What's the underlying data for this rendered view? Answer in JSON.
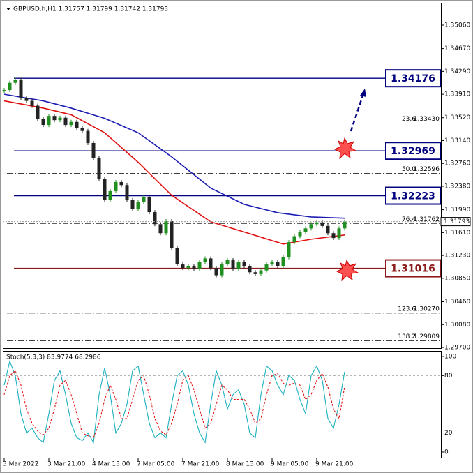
{
  "chart_data": [
    {
      "type": "candlestick",
      "title": "GBPUSD.h,H1  1.31757 1.31799 1.31742 1.31793",
      "values": [
        1.3398,
        1.341,
        1.3415,
        1.3385,
        1.338,
        1.3372,
        1.335,
        1.334,
        1.3355,
        1.3348,
        1.3352,
        1.334,
        1.3345,
        1.3335,
        1.333,
        1.331,
        1.3285,
        1.325,
        1.3215,
        1.323,
        1.3245,
        1.324,
        1.3215,
        1.32,
        1.3212,
        1.322,
        1.3195,
        1.3175,
        1.316,
        1.318,
        1.3135,
        1.3108,
        1.3102,
        1.3105,
        1.31,
        1.3112,
        1.3118,
        1.3102,
        1.309,
        1.3108,
        1.3115,
        1.31,
        1.3112,
        1.3105,
        1.3095,
        1.3092,
        1.3098,
        1.3108,
        1.3112,
        1.3105,
        1.312,
        1.3145,
        1.3155,
        1.3162,
        1.3168,
        1.3175,
        1.3178,
        1.3172,
        1.316,
        1.3152,
        1.3168,
        1.31793
      ],
      "up_color": "#1f8f1f",
      "down_color": "#222222",
      "ma_series": [
        {
          "color": "#1c1cb4",
          "x": [
            0,
            7,
            12,
            18,
            24,
            30,
            37,
            43,
            49,
            55,
            61
          ],
          "values": [
            1.3391,
            1.338,
            1.3368,
            1.3351,
            1.3327,
            1.3287,
            1.3235,
            1.3208,
            1.3194,
            1.3187,
            1.3185
          ]
        },
        {
          "color": "#e01010",
          "x": [
            0,
            7,
            12,
            18,
            24,
            30,
            37,
            43,
            50,
            55,
            61
          ],
          "values": [
            1.338,
            1.3368,
            1.3357,
            1.3327,
            1.3278,
            1.3223,
            1.3179,
            1.3162,
            1.3142,
            1.315,
            1.3157
          ]
        }
      ],
      "xticks": [
        {
          "value": 0,
          "label": "3 Mar 2022"
        },
        {
          "value": 8,
          "label": "3 Mar 21:00"
        },
        {
          "value": 16,
          "label": "4 Mar 13:00"
        },
        {
          "value": 24,
          "label": "7 Mar 05:00"
        },
        {
          "value": 32,
          "label": "7 Mar 21:00"
        },
        {
          "value": 40,
          "label": "8 Mar 13:00"
        },
        {
          "value": 48,
          "label": "9 Mar 05:00"
        },
        {
          "value": 56,
          "label": "9 Mar 21:00"
        }
      ],
      "ylim": [
        1.29677,
        1.35431
      ],
      "yticks": [
        {
          "value": 1.3506,
          "label": "1.35060"
        },
        {
          "value": 1.3467,
          "label": "1.34670"
        },
        {
          "value": 1.3429,
          "label": "1.34290"
        },
        {
          "value": 1.3391,
          "label": "1.33910"
        },
        {
          "value": 1.3352,
          "label": "1.33520"
        },
        {
          "value": 1.3314,
          "label": "1.33140"
        },
        {
          "value": 1.3276,
          "label": "1.32760"
        },
        {
          "value": 1.3238,
          "label": "1.32380"
        },
        {
          "value": 1.3199,
          "label": "1.31990"
        },
        {
          "value": 1.3161,
          "label": "1.31610"
        },
        {
          "value": 1.3123,
          "label": "1.31230"
        },
        {
          "value": 1.3085,
          "label": "1.30850"
        },
        {
          "value": 1.3046,
          "label": "1.30460"
        },
        {
          "value": 1.3008,
          "label": "1.30080"
        },
        {
          "value": 1.297,
          "label": "1.29700"
        }
      ],
      "key_levels": {
        "values": [
          1.34176,
          1.32969,
          1.32223,
          1.31016
        ],
        "colors": [
          "#00007f",
          "#00007f",
          "#00007f",
          "#8b1a1a"
        ]
      },
      "fib": {
        "names": [
          "23.6",
          "50.0",
          "76.4",
          "123.6",
          "138.2"
        ],
        "values": [
          1.3343,
          1.32596,
          1.31762,
          1.3027,
          1.29809
        ],
        "value_labels": [
          "1.33430",
          "1.32596",
          "1.31762",
          "1.30270",
          "1.29809"
        ]
      },
      "current_price": 1.31793
    },
    {
      "type": "stochastic",
      "title": "Stoch(5,3,3) 83.9774 68.2986",
      "series": [
        {
          "color": "#1ab0c0",
          "dashed": false,
          "values": [
            70,
            95,
            80,
            40,
            20,
            25,
            15,
            10,
            40,
            75,
            85,
            60,
            30,
            15,
            12,
            20,
            10,
            60,
            88,
            60,
            20,
            30,
            50,
            85,
            90,
            60,
            30,
            15,
            20,
            15,
            50,
            80,
            85,
            70,
            40,
            20,
            10,
            50,
            85,
            70,
            45,
            60,
            65,
            50,
            20,
            15,
            60,
            90,
            85,
            70,
            60,
            80,
            75,
            55,
            40,
            80,
            90,
            75,
            35,
            25,
            50,
            83.9774
          ]
        },
        {
          "color": "#e01010",
          "dashed": true,
          "values": [
            60,
            80,
            85,
            70,
            45,
            30,
            22,
            18,
            25,
            45,
            70,
            75,
            60,
            40,
            20,
            17,
            15,
            30,
            55,
            70,
            55,
            35,
            35,
            55,
            75,
            80,
            60,
            35,
            22,
            18,
            30,
            50,
            75,
            80,
            65,
            45,
            25,
            30,
            50,
            70,
            65,
            55,
            55,
            55,
            45,
            30,
            35,
            60,
            80,
            82,
            72,
            70,
            72,
            70,
            55,
            60,
            75,
            82,
            68,
            45,
            35,
            68.2986
          ]
        }
      ],
      "ylim": [
        -6.6,
        105.8
      ],
      "yticks": [
        100,
        80,
        20,
        0
      ],
      "levels": [
        80,
        20
      ]
    }
  ]
}
